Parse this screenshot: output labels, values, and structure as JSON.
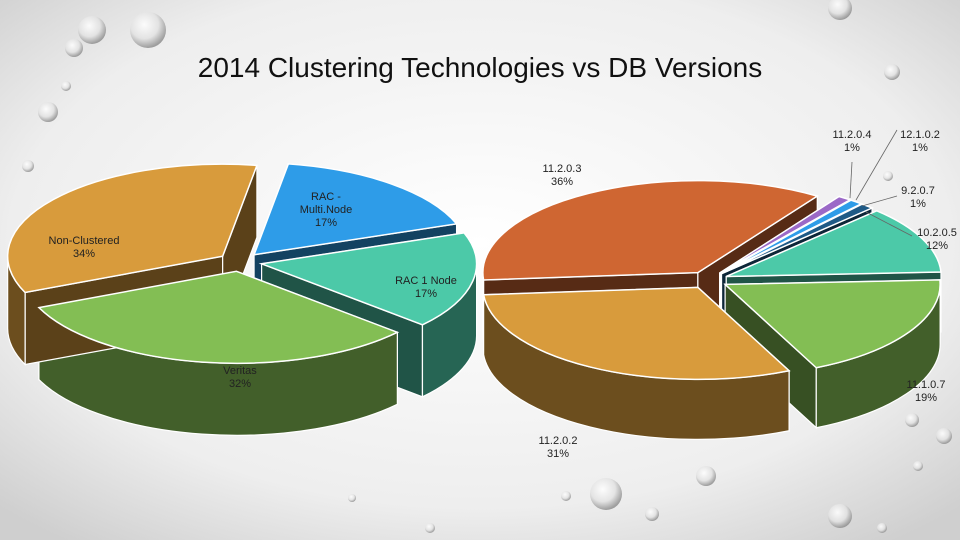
{
  "title": "2014 Clustering Technologies vs DB Versions",
  "chart_data": [
    {
      "type": "pie",
      "style": "3d-exploded",
      "slices": [
        {
          "name": "RAC - Multi Node",
          "lines": [
            "RAC -",
            "Multi.Node",
            "17%"
          ],
          "value": 17,
          "color": "#2E9CE8"
        },
        {
          "name": "RAC 1 Node",
          "lines": [
            "RAC 1 Node",
            "17%"
          ],
          "value": 17,
          "color": "#4CC9A8"
        },
        {
          "name": "Veritas",
          "lines": [
            "Veritas",
            "32%"
          ],
          "value": 32,
          "color": "#83BE54"
        },
        {
          "name": "Non-Clustered",
          "lines": [
            "Non-Clustered",
            "34%"
          ],
          "value": 34,
          "color": "#D89B3C"
        }
      ]
    },
    {
      "type": "pie",
      "style": "3d-exploded",
      "slices": [
        {
          "name": "11.2.0.3",
          "lines": [
            "11.2.0.3",
            "36%"
          ],
          "value": 36,
          "color": "#CF6632"
        },
        {
          "name": "11.2.0.4",
          "lines": [
            "11.2.0.4",
            "1%"
          ],
          "value": 1,
          "color": "#9B69C7"
        },
        {
          "name": "12.1.0.2",
          "lines": [
            "12.1.0.2",
            "1%"
          ],
          "value": 1,
          "color": "#2E9CE8"
        },
        {
          "name": "9.2.0.7",
          "lines": [
            "9.2.0.7",
            "1%"
          ],
          "value": 1,
          "color": "#1F5A86"
        },
        {
          "name": "10.2.0.5",
          "lines": [
            "10.2.0.5",
            "12%"
          ],
          "value": 12,
          "color": "#4CC9A8"
        },
        {
          "name": "11.1.0.7",
          "lines": [
            "11.1.0.7",
            "19%"
          ],
          "value": 19,
          "color": "#83BE54"
        },
        {
          "name": "11.2.0.2",
          "lines": [
            "11.2.0.2",
            "31%"
          ],
          "value": 31,
          "color": "#D89B3C"
        }
      ]
    }
  ]
}
